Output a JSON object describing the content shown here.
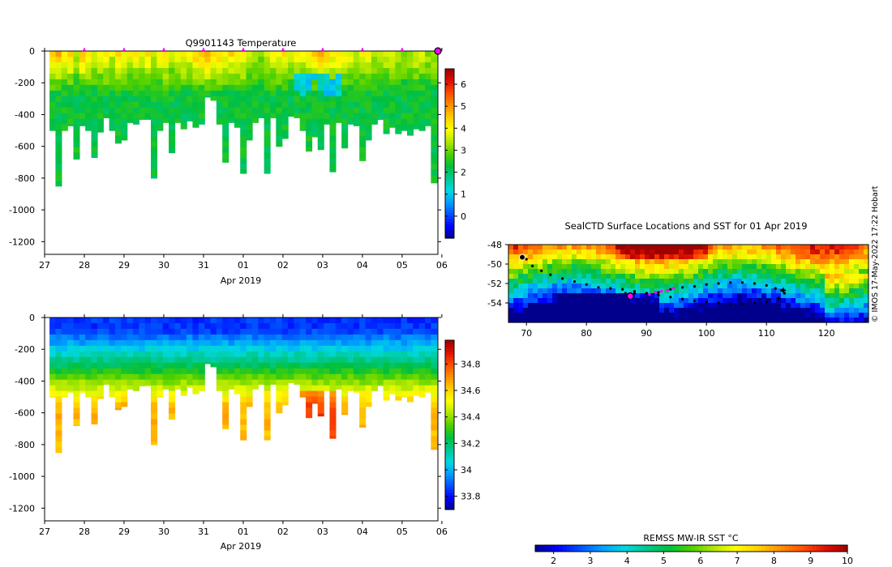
{
  "credit": "© IMOS 17-May-2022 17:22 Hobart",
  "colors": {
    "marker": "#ff00ff",
    "track": "#000000",
    "cmap": [
      "#00008c",
      "#0000ff",
      "#0050ff",
      "#00a0ff",
      "#00d8e0",
      "#00c890",
      "#00c040",
      "#50d000",
      "#b0e800",
      "#ffff00",
      "#ffd000",
      "#ff9000",
      "#ff5000",
      "#e01000",
      "#a00000"
    ]
  },
  "chart_data": [
    {
      "id": "temperature",
      "type": "heatmap",
      "title": "Q9901143  Temperature",
      "xlabel": "Apr 2019",
      "xtick_labels": [
        "27",
        "28",
        "29",
        "30",
        "31",
        "01",
        "02",
        "03",
        "04",
        "05",
        "06"
      ],
      "xlim": [
        0,
        9.9
      ],
      "ylim": [
        -1280,
        0
      ],
      "ytick_values": [
        0,
        -200,
        -400,
        -600,
        -800,
        -1000,
        -1200
      ],
      "ytick_labels": [
        "0",
        "-200",
        "-400",
        "-600",
        "-800",
        "-1000",
        "-1200"
      ],
      "profile_x": [
        0.2,
        0.35,
        0.5,
        0.65,
        0.8,
        0.95,
        1.1,
        1.25,
        1.4,
        1.55,
        1.7,
        1.85,
        2.0,
        2.15,
        2.3,
        2.45,
        2.6,
        2.75,
        2.9,
        3.05,
        3.2,
        3.35,
        3.5,
        3.65,
        3.8,
        3.95,
        4.1,
        4.25,
        4.4,
        4.55,
        4.7,
        4.85,
        5.0,
        5.15,
        5.3,
        5.45,
        5.6,
        5.75,
        5.9,
        6.05,
        6.2,
        6.35,
        6.5,
        6.65,
        6.8,
        6.95,
        7.1,
        7.25,
        7.4,
        7.55,
        7.7,
        7.85,
        8.0,
        8.15,
        8.3,
        8.45,
        8.6,
        8.75,
        8.9,
        9.05,
        9.2,
        9.35,
        9.5,
        9.65,
        9.8
      ],
      "profile_depth_max": [
        500,
        850,
        500,
        470,
        680,
        470,
        500,
        670,
        510,
        420,
        500,
        580,
        560,
        450,
        460,
        430,
        430,
        800,
        500,
        450,
        640,
        450,
        490,
        440,
        480,
        460,
        290,
        310,
        460,
        700,
        450,
        480,
        770,
        560,
        450,
        420,
        770,
        420,
        600,
        550,
        410,
        420,
        500,
        630,
        540,
        620,
        460,
        760,
        450,
        610,
        460,
        470,
        690,
        560,
        460,
        430,
        520,
        480,
        520,
        500,
        530,
        490,
        500,
        470,
        830
      ],
      "surface_temp": [
        4.8,
        4.7,
        4.3,
        4.5,
        3.5,
        4.6,
        4.1,
        3.8,
        4.0,
        4.2,
        3.7,
        4.3,
        4.0,
        3.9,
        4.1,
        3.8,
        4.2,
        3.6,
        4.0,
        4.3,
        3.5,
        3.8,
        4.1,
        4.0,
        4.5,
        4.7,
        4.8,
        4.6,
        4.4,
        4.1,
        4.3,
        4.0,
        4.2,
        3.7,
        3.5,
        3.2,
        3.4,
        3.8,
        4.0,
        4.2,
        3.6,
        3.9,
        4.0,
        4.3,
        4.5,
        4.7,
        4.6,
        4.1,
        4.4,
        4.0,
        3.8,
        3.6,
        3.9,
        4.1,
        3.5,
        3.3,
        3.7,
        3.9,
        3.5,
        3.2,
        3.4,
        3.8,
        3.6,
        3.3,
        3.5
      ],
      "deep_temp": 2.3,
      "cold_layer": {
        "x_range": [
          6.3,
          7.4
        ],
        "depth_range": [
          -260,
          -140
        ],
        "value": 0.8
      },
      "surfacing_markers_x": [
        1,
        2,
        3,
        4,
        5,
        6,
        7,
        8,
        9
      ],
      "current_marker_x": 9.9,
      "colorbar": {
        "min": -1.0,
        "max": 6.7,
        "tick_values": [
          0,
          1,
          2,
          3,
          4,
          5,
          6
        ],
        "tick_labels": [
          "0",
          "1",
          "2",
          "3",
          "4",
          "5",
          "6"
        ]
      }
    },
    {
      "id": "salinity",
      "type": "heatmap",
      "title": "",
      "xlabel": "Apr 2019",
      "xtick_labels": [
        "27",
        "28",
        "29",
        "30",
        "31",
        "01",
        "02",
        "03",
        "04",
        "05",
        "06"
      ],
      "xlim": [
        0,
        9.9
      ],
      "ylim": [
        -1280,
        0
      ],
      "ytick_values": [
        0,
        -200,
        -400,
        -600,
        -800,
        -1000,
        -1200
      ],
      "ytick_labels": [
        "0",
        "-200",
        "-400",
        "-600",
        "-800",
        "-1000",
        "-1200"
      ],
      "surface_sal": 33.85,
      "deep_sal": 34.65,
      "colorbar": {
        "min": 33.7,
        "max": 34.98,
        "tick_values": [
          33.8,
          34.0,
          34.2,
          34.4,
          34.6,
          34.8
        ],
        "tick_labels": [
          "33.8",
          "34",
          "34.2",
          "34.4",
          "34.6",
          "34.8"
        ]
      }
    },
    {
      "id": "sst_map",
      "type": "heatmap",
      "title": "SealCTD Surface Locations and SST for 01 Apr 2019",
      "xlim": [
        67,
        127
      ],
      "ylim": [
        -56,
        -48
      ],
      "xtick_values": [
        70,
        80,
        90,
        100,
        110,
        120
      ],
      "xtick_labels": [
        "70",
        "80",
        "90",
        "100",
        "110",
        "120"
      ],
      "ytick_values": [
        -48,
        -50,
        -52,
        -54
      ],
      "ytick_labels": [
        "-48",
        "-50",
        "-52",
        "-54"
      ],
      "track_lon": [
        69.2,
        70.0,
        71.0,
        72.5,
        74.0,
        76.0,
        78.0,
        80.0,
        82.0,
        84.0,
        86.0,
        88.0,
        90.0,
        92.0,
        94.0,
        96.0,
        98.0,
        100.0,
        102.0,
        104.0,
        106.0,
        108.0,
        110.0,
        111.5,
        112.5,
        113.0,
        112.0,
        110.0,
        108.0,
        106.0,
        104.0,
        102.0,
        100.0,
        98.0,
        96.0,
        94.0,
        92.0,
        90.0,
        88.0,
        86.5
      ],
      "track_lat": [
        -49.3,
        -49.5,
        -50.2,
        -50.7,
        -51.1,
        -51.5,
        -51.8,
        -52.1,
        -52.4,
        -52.5,
        -52.6,
        -52.8,
        -53.0,
        -52.9,
        -52.6,
        -52.4,
        -52.3,
        -52.1,
        -52.0,
        -51.9,
        -51.9,
        -52.0,
        -52.2,
        -52.5,
        -52.7,
        -53.0,
        -53.5,
        -53.9,
        -54.0,
        -54.1,
        -54.1,
        -54.0,
        -53.9,
        -53.8,
        -53.6,
        -53.4,
        -53.2,
        -53.0,
        -53.0,
        -53.0
      ],
      "recent_lon": [
        90.5,
        91.5,
        92.5,
        93.5,
        94.5
      ],
      "recent_lat": [
        -53.1,
        -52.9,
        -52.8,
        -52.7,
        -52.5
      ],
      "current_position": [
        87.3,
        -53.3
      ],
      "start_position": [
        69.3,
        -49.3
      ],
      "end_position": [
        112.8,
        -52.7
      ],
      "colorbar": {
        "label": "REMSS MW-IR SST °C",
        "min": 1.5,
        "max": 10.0,
        "tick_values": [
          2,
          3,
          4,
          5,
          6,
          7,
          8,
          9,
          10
        ],
        "tick_labels": [
          "2",
          "3",
          "4",
          "5",
          "6",
          "7",
          "8",
          "9",
          "10"
        ]
      }
    }
  ]
}
